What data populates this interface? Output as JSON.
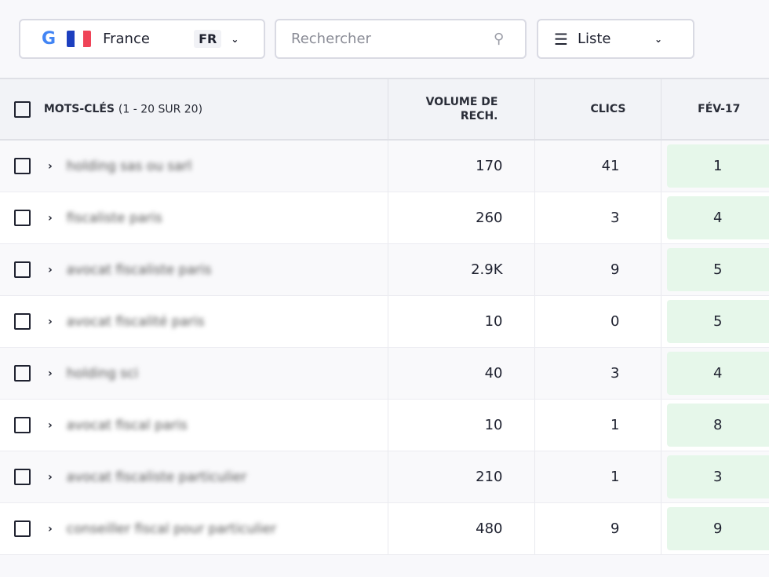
{
  "toolbar": {
    "engine_icon": "google-icon",
    "country": "France",
    "country_code": "FR",
    "flag_colors": [
      "#1d3fbf",
      "#ffffff",
      "#ef4458"
    ],
    "search_placeholder": "Rechercher",
    "view": "Liste"
  },
  "table": {
    "headers": {
      "keywords": "MOTS-CLÉS",
      "keywords_count": "(1 - 20 SUR 20)",
      "volume": "VOLUME DE RECH.",
      "clicks": "CLICS",
      "date": "FÉV-17"
    },
    "rank_color": "#e6f7ea",
    "rows": [
      {
        "keyword": "holding sas ou sarl",
        "volume": "170",
        "clicks": "41",
        "rank": "1"
      },
      {
        "keyword": "fiscaliste paris",
        "volume": "260",
        "clicks": "3",
        "rank": "4"
      },
      {
        "keyword": "avocat fiscaliste paris",
        "volume": "2.9K",
        "clicks": "9",
        "rank": "5"
      },
      {
        "keyword": "avocat fiscalité paris",
        "volume": "10",
        "clicks": "0",
        "rank": "5"
      },
      {
        "keyword": "holding sci",
        "volume": "40",
        "clicks": "3",
        "rank": "4"
      },
      {
        "keyword": "avocat fiscal paris",
        "volume": "10",
        "clicks": "1",
        "rank": "8"
      },
      {
        "keyword": "avocat fiscaliste particulier",
        "volume": "210",
        "clicks": "1",
        "rank": "3"
      },
      {
        "keyword": "conseiller fiscal pour particulier",
        "volume": "480",
        "clicks": "9",
        "rank": "9"
      }
    ]
  }
}
